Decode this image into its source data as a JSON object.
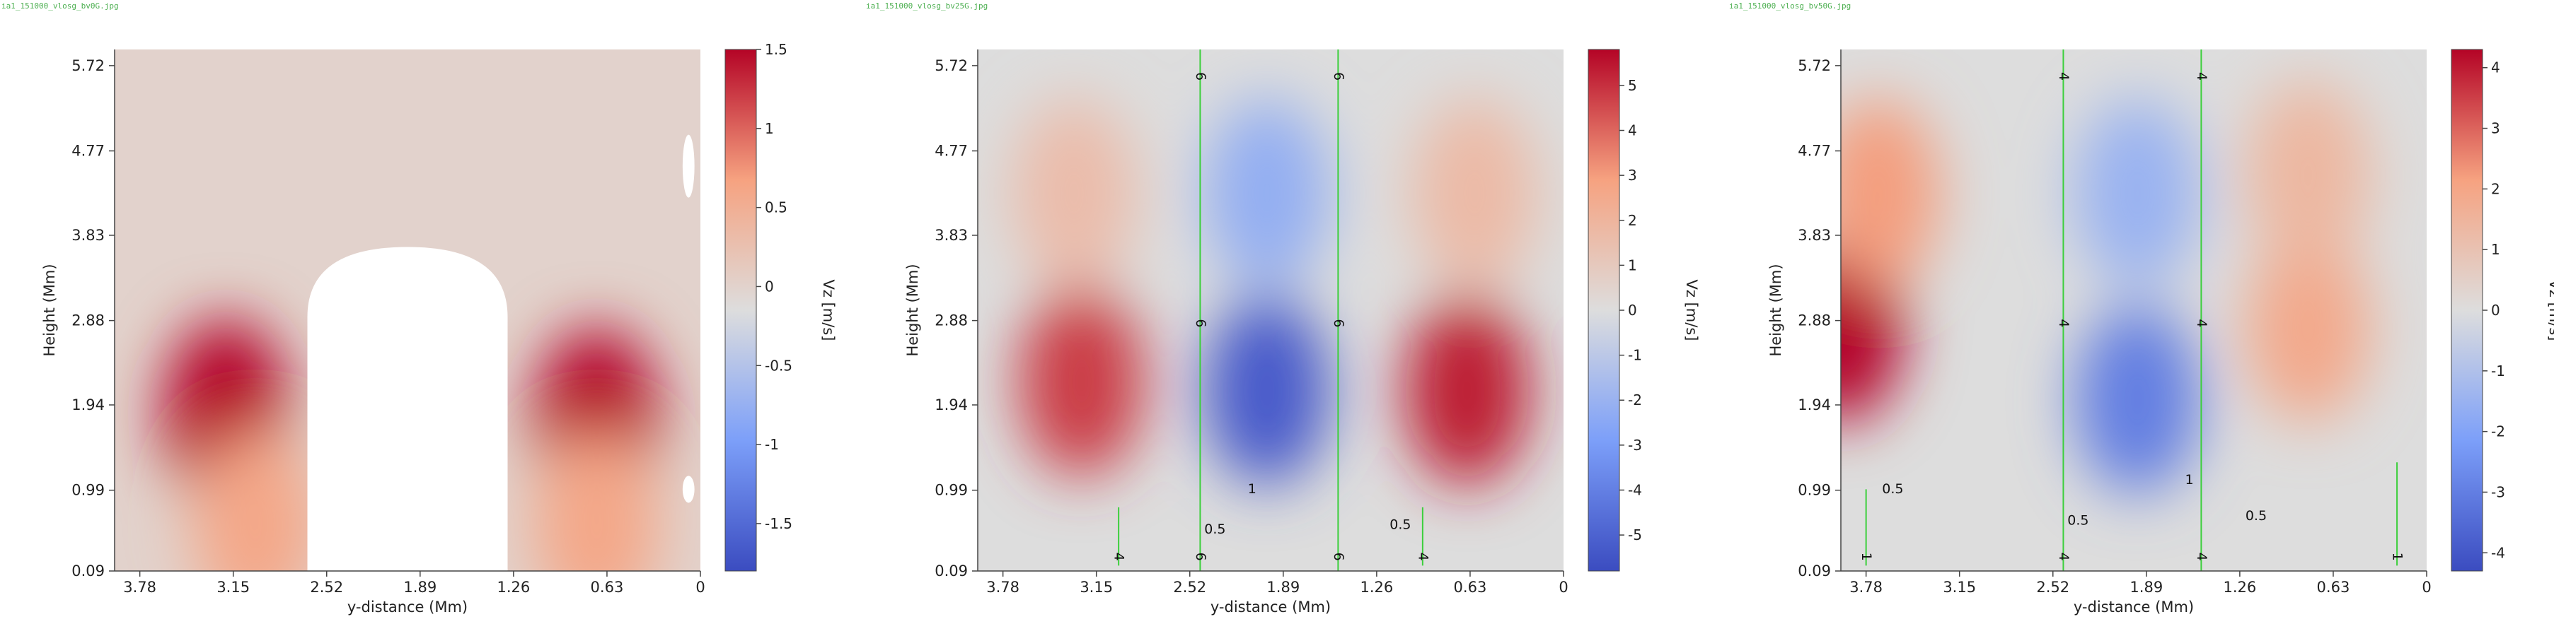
{
  "chart_data": [
    {
      "type": "heatmap",
      "filename": "ia1_151000_vlosg_bv0G.jpg",
      "xlabel": "y-distance (Mm)",
      "ylabel": "Height (Mm)",
      "colorbar_label": "Vz [m/s]",
      "x_ticks": [
        "3.78",
        "3.15",
        "2.52",
        "1.89",
        "1.26",
        "0.63",
        "0"
      ],
      "y_ticks": [
        "5.72",
        "4.77",
        "3.83",
        "2.88",
        "1.94",
        "0.99",
        "0.09"
      ],
      "colorbar_ticks": [
        "1.5",
        "1",
        "0.5",
        "0",
        "-0.5",
        "-1",
        "-1.5"
      ],
      "colorbar_range": [
        -1.8,
        1.5
      ],
      "x_range": [
        3.95,
        0
      ],
      "y_range": [
        0.09,
        5.9
      ],
      "background_value": 0,
      "blobs": [
        {
          "x": 3.2,
          "y": 1.85,
          "value": 1.5
        },
        {
          "x": 0.7,
          "y": 1.75,
          "value": 1.5
        },
        {
          "x": 3.0,
          "y": 0.6,
          "value": 0.6
        },
        {
          "x": 0.7,
          "y": 0.6,
          "value": 0.6
        }
      ],
      "masked_regions": [
        {
          "shape": "arch",
          "x_from": 2.65,
          "x_to": 1.3,
          "y_from": 0.09,
          "y_top": 3.7
        },
        {
          "shape": "ellipse",
          "x": 0.08,
          "y": 4.6,
          "rx": 0.04,
          "ry": 0.35
        },
        {
          "shape": "ellipse",
          "x": 0.08,
          "y": 1.0,
          "rx": 0.04,
          "ry": 0.15
        }
      ],
      "contours": []
    },
    {
      "type": "heatmap",
      "filename": "ia1_151000_vlosg_bv25G.jpg",
      "xlabel": "y-distance (Mm)",
      "ylabel": "Height (Mm)",
      "colorbar_label": "Vz [m/s]",
      "x_ticks": [
        "3.78",
        "3.15",
        "2.52",
        "1.89",
        "1.26",
        "0.63",
        "0"
      ],
      "y_ticks": [
        "5.72",
        "4.77",
        "3.83",
        "2.88",
        "1.94",
        "0.99",
        "0.09"
      ],
      "colorbar_ticks": [
        "5",
        "4",
        "3",
        "2",
        "1",
        "0",
        "-1",
        "-2",
        "-3",
        "-4",
        "-5"
      ],
      "colorbar_range": [
        -5.8,
        5.8
      ],
      "x_range": [
        3.95,
        0
      ],
      "y_range": [
        0.09,
        5.9
      ],
      "background_value": 0,
      "blobs": [
        {
          "x": 3.25,
          "y": 2.2,
          "value": 4.8
        },
        {
          "x": 3.3,
          "y": 4.3,
          "value": 1.6
        },
        {
          "x": 2.0,
          "y": 2.1,
          "value": -5.3
        },
        {
          "x": 2.0,
          "y": 4.3,
          "value": -2.2
        },
        {
          "x": 0.65,
          "y": 2.1,
          "value": 5.4
        },
        {
          "x": 0.6,
          "y": 4.3,
          "value": 1.7
        }
      ],
      "masked_regions": [],
      "contours": [
        {
          "x": 2.45,
          "y_from": 0.09,
          "y_to": 5.9,
          "labels": [
            {
              "text": "6",
              "y": 5.6
            },
            {
              "text": "6",
              "y": 2.85
            },
            {
              "text": "6",
              "y": 0.25
            }
          ]
        },
        {
          "x": 1.52,
          "y_from": 0.09,
          "y_to": 5.9,
          "labels": [
            {
              "text": "6",
              "y": 5.6
            },
            {
              "text": "6",
              "y": 2.85
            },
            {
              "text": "6",
              "y": 0.25
            }
          ]
        },
        {
          "x": 3.0,
          "y_from": 0.15,
          "y_to": 0.8,
          "labels": [
            {
              "text": "4",
              "y": 0.25
            }
          ]
        },
        {
          "x": 0.95,
          "y_from": 0.15,
          "y_to": 0.8,
          "labels": [
            {
              "text": "4",
              "y": 0.25
            }
          ]
        }
      ],
      "contour_labels": [
        {
          "text": "1",
          "x": 2.1,
          "y": 1.0
        },
        {
          "text": "0.5",
          "x": 2.35,
          "y": 0.55
        },
        {
          "text": "0.5",
          "x": 1.1,
          "y": 0.6
        }
      ]
    },
    {
      "type": "heatmap",
      "filename": "ia1_151000_vlosg_bv50G.jpg",
      "xlabel": "y-distance (Mm)",
      "ylabel": "Height (Mm)",
      "colorbar_label": "Vz [m/s]",
      "x_ticks": [
        "3.78",
        "3.15",
        "2.52",
        "1.89",
        "1.26",
        "0.63",
        "0"
      ],
      "y_ticks": [
        "5.72",
        "4.77",
        "3.83",
        "2.88",
        "1.94",
        "0.99",
        "0.09"
      ],
      "colorbar_ticks": [
        "4",
        "3",
        "2",
        "1",
        "0",
        "-1",
        "-2",
        "-3",
        "-4"
      ],
      "colorbar_range": [
        -4.3,
        4.3
      ],
      "x_range": [
        3.95,
        0
      ],
      "y_range": [
        0.09,
        5.9
      ],
      "background_value": 0,
      "blobs": [
        {
          "x": 3.95,
          "y": 2.8,
          "value": 4.4
        },
        {
          "x": 3.7,
          "y": 4.3,
          "value": 2.2
        },
        {
          "x": 1.95,
          "y": 2.0,
          "value": -3.0
        },
        {
          "x": 1.95,
          "y": 4.3,
          "value": -1.5
        },
        {
          "x": 0.8,
          "y": 2.8,
          "value": 1.9
        },
        {
          "x": 0.8,
          "y": 4.5,
          "value": 1.4
        }
      ],
      "masked_regions": [],
      "contours": [
        {
          "x": 2.45,
          "y_from": 0.09,
          "y_to": 5.9,
          "labels": [
            {
              "text": "4",
              "y": 5.6
            },
            {
              "text": "4",
              "y": 2.85
            },
            {
              "text": "4",
              "y": 0.25
            }
          ]
        },
        {
          "x": 1.52,
          "y_from": 0.09,
          "y_to": 5.9,
          "labels": [
            {
              "text": "4",
              "y": 5.6
            },
            {
              "text": "4",
              "y": 2.85
            },
            {
              "text": "4",
              "y": 0.25
            }
          ]
        },
        {
          "x": 3.78,
          "y_from": 0.15,
          "y_to": 1.0,
          "labels": [
            {
              "text": "1",
              "y": 0.25
            }
          ]
        },
        {
          "x": 0.2,
          "y_from": 0.15,
          "y_to": 1.3,
          "labels": [
            {
              "text": "1",
              "y": 0.25
            }
          ]
        }
      ],
      "contour_labels": [
        {
          "text": "0.5",
          "x": 3.6,
          "y": 1.0
        },
        {
          "text": "1",
          "x": 1.6,
          "y": 1.1
        },
        {
          "text": "0.5",
          "x": 2.35,
          "y": 0.65
        },
        {
          "text": "0.5",
          "x": 1.15,
          "y": 0.7
        }
      ]
    }
  ]
}
